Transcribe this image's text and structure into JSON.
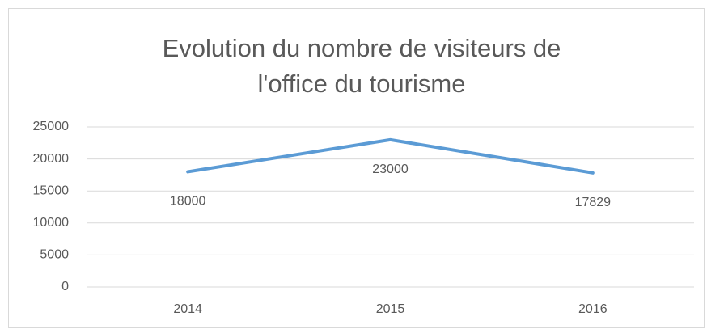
{
  "chart_data": {
    "type": "line",
    "title": "Evolution du nombre de visiteurs de l'office du tourisme",
    "categories": [
      "2014",
      "2015",
      "2016"
    ],
    "values": [
      18000,
      23000,
      17829
    ],
    "color": "#5b9bd5",
    "ylim": [
      0,
      25000
    ],
    "yticks": [
      0,
      5000,
      10000,
      15000,
      20000,
      25000
    ],
    "grid": true,
    "data_labels": true
  }
}
